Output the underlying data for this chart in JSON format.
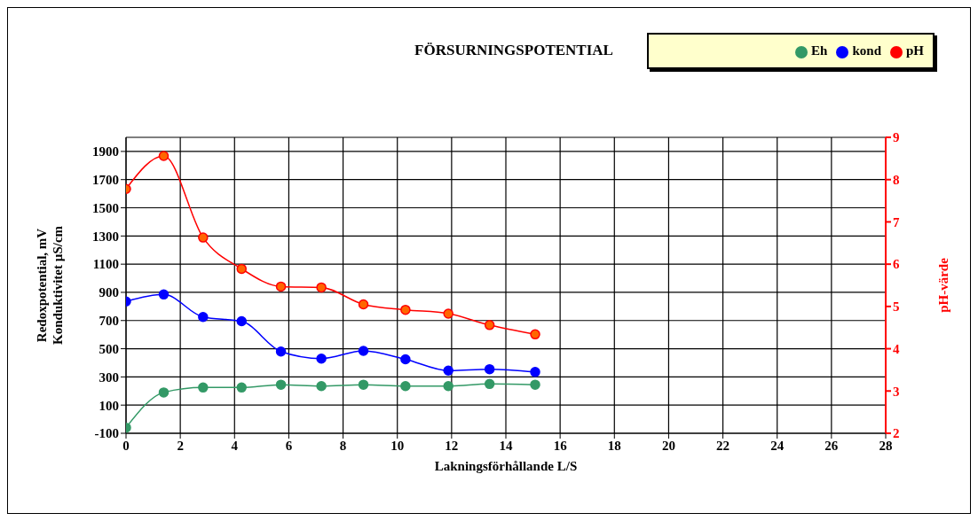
{
  "chart_data": {
    "type": "line",
    "title": "FÖRSURNINGSPOTENTIAL",
    "xlabel": "Lakningsförhållande L/S",
    "ylabel": "Redoxpotential, mV\nKonduktivitet µS/cm",
    "y2label": "pH-värde",
    "x": [
      0,
      1.39,
      2.84,
      4.26,
      5.71,
      7.2,
      8.75,
      10.3,
      11.88,
      13.4,
      15.08
    ],
    "series": [
      {
        "name": "Eh",
        "color": "#339966",
        "values": [
          -60,
          190,
          225,
          225,
          245,
          235,
          245,
          235,
          235,
          250,
          245
        ]
      },
      {
        "name": "kond",
        "color": "#0000ff",
        "values": [
          835,
          885,
          725,
          695,
          480,
          430,
          485,
          425,
          345,
          355,
          335
        ]
      },
      {
        "name": "pH",
        "color": "#ff0000",
        "axis": "y2",
        "values": [
          7.78,
          8.56,
          6.63,
          5.89,
          5.47,
          5.45,
          5.05,
          4.92,
          4.83,
          4.56,
          4.34
        ]
      }
    ],
    "xlim": [
      0,
      28
    ],
    "xticks": [
      0,
      2,
      4,
      6,
      8,
      10,
      12,
      14,
      16,
      18,
      20,
      22,
      24,
      26,
      28
    ],
    "ylim": [
      -100,
      2000
    ],
    "yticks": [
      -100,
      100,
      300,
      500,
      700,
      900,
      1100,
      1300,
      1500,
      1700,
      1900
    ],
    "y2lim": [
      2,
      9
    ],
    "y2ticks": [
      2,
      3,
      4,
      5,
      6,
      7,
      8,
      9
    ],
    "grid": true,
    "legend": "top right",
    "marker": "circle",
    "line_style": "solid"
  }
}
